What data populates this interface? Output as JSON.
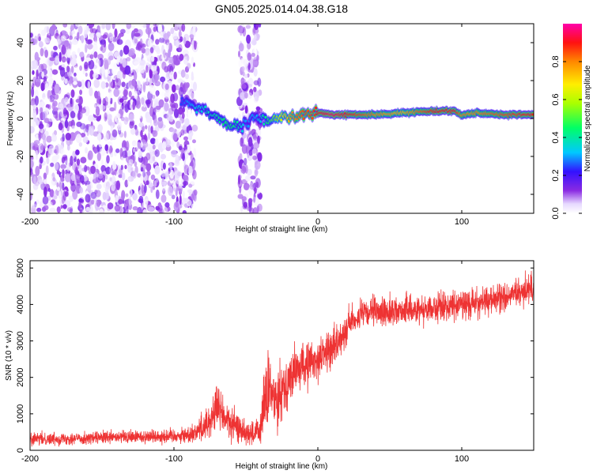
{
  "title": "GN05.2025.014.04.38.G18",
  "colors": {
    "snr_line": "#ee3333",
    "axis": "#000000",
    "background": "#ffffff"
  },
  "chart_data": [
    {
      "type": "heatmap",
      "title": "",
      "xlabel": "Height of straight line (km)",
      "ylabel": "Frequency (Hz)",
      "xlim": [
        -200,
        150
      ],
      "ylim": [
        -50,
        50
      ],
      "xticks": [
        -200,
        -100,
        0,
        100
      ],
      "yticks": [
        -40,
        -20,
        0,
        20,
        40
      ],
      "colorbar": {
        "label": "Normalized spectral amplitude",
        "range": [
          0.0,
          1.0
        ],
        "ticks": [
          0.0,
          0.2,
          0.4,
          0.6,
          0.8
        ],
        "tick_labels": [
          "0.0",
          "0.2",
          "0.4",
          "0.6",
          "0.8"
        ],
        "colormap": "rainbow (white-purple-blue-cyan-green-yellow-orange-red-magenta)"
      },
      "signal_ridge": {
        "description": "dominant frequency (Hz) vs height (km)",
        "x": [
          -95,
          -90,
          -85,
          -80,
          -75,
          -70,
          -65,
          -60,
          -55,
          -50,
          -45,
          -40,
          -35,
          -30,
          -25,
          -20,
          -15,
          -10,
          -5,
          0,
          10,
          20,
          40,
          60,
          80,
          95,
          100,
          110,
          130,
          150
        ],
        "y": [
          10,
          8,
          6,
          5,
          3,
          1,
          -2,
          -4,
          -5,
          -3,
          0,
          0,
          -1,
          0,
          1,
          1,
          1,
          2,
          2,
          3,
          2,
          2,
          2,
          3,
          4,
          4,
          2,
          3,
          2,
          2
        ],
        "amplitude": [
          0.25,
          0.3,
          0.35,
          0.35,
          0.4,
          0.4,
          0.45,
          0.45,
          0.4,
          0.3,
          0.3,
          0.35,
          0.45,
          0.55,
          0.65,
          0.75,
          0.8,
          0.85,
          0.85,
          0.9,
          0.95,
          0.9,
          0.8,
          0.75,
          0.9,
          0.9,
          0.8,
          0.8,
          0.85,
          0.9
        ]
      },
      "noise_region": {
        "description": "scattered low-amplitude noise across all frequencies",
        "x_range": [
          -200,
          -85
        ],
        "secondary_x_range": [
          -55,
          -40
        ],
        "amplitude_range": [
          0.0,
          0.15
        ]
      }
    },
    {
      "type": "line",
      "title": "",
      "xlabel": "Height of straight line (km)",
      "ylabel": "SNR (10 * v/v)",
      "xlim": [
        -200,
        150
      ],
      "ylim": [
        0,
        5200
      ],
      "xticks": [
        -200,
        -100,
        0,
        100
      ],
      "yticks": [
        0,
        1000,
        2000,
        3000,
        4000,
        5000
      ],
      "series": [
        {
          "color": "#ee3333",
          "x": [
            -200,
            -180,
            -160,
            -140,
            -120,
            -100,
            -90,
            -85,
            -80,
            -75,
            -70,
            -65,
            -60,
            -55,
            -50,
            -45,
            -40,
            -38,
            -35,
            -30,
            -25,
            -20,
            -15,
            -10,
            -5,
            0,
            5,
            10,
            15,
            20,
            25,
            30,
            40,
            50,
            60,
            80,
            100,
            120,
            140,
            150
          ],
          "mean": [
            300,
            320,
            330,
            350,
            380,
            400,
            420,
            500,
            650,
            800,
            1200,
            900,
            700,
            600,
            500,
            450,
            500,
            1200,
            1600,
            1400,
            1700,
            1900,
            2200,
            2300,
            2400,
            2500,
            2700,
            2800,
            3000,
            3400,
            3600,
            3700,
            3800,
            3800,
            3850,
            3900,
            4000,
            4100,
            4300,
            4500
          ],
          "noise": [
            150,
            150,
            150,
            160,
            170,
            180,
            200,
            250,
            350,
            450,
            600,
            500,
            400,
            350,
            300,
            300,
            400,
            900,
            900,
            800,
            700,
            600,
            600,
            550,
            500,
            500,
            500,
            450,
            400,
            400,
            350,
            350,
            350,
            350,
            350,
            350,
            350,
            350,
            350,
            350
          ]
        }
      ]
    }
  ]
}
